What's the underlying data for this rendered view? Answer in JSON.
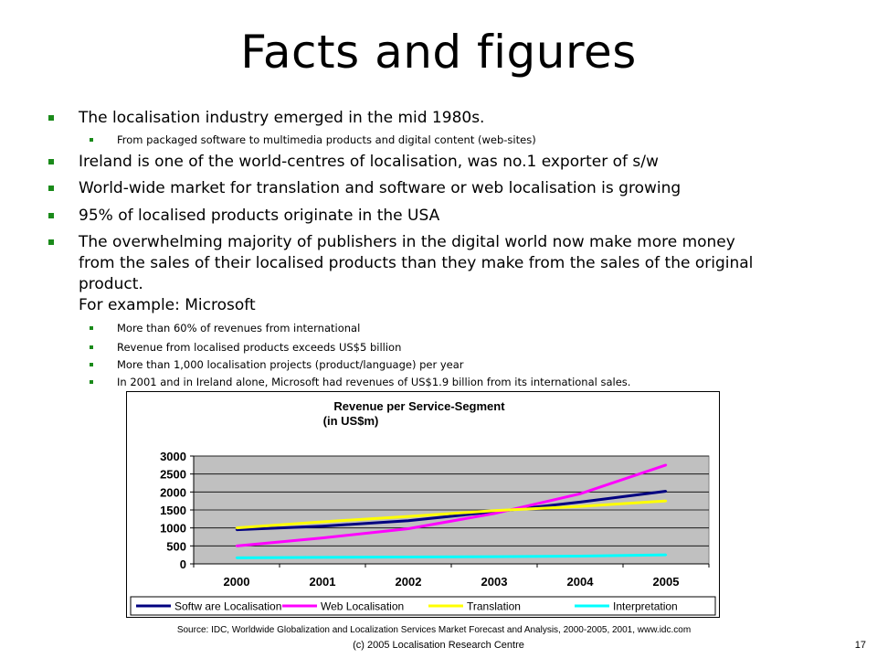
{
  "slide": {
    "title": "Facts and figures",
    "bullets": [
      {
        "text": "The localisation industry emerged in the mid 1980s."
      },
      {
        "text": "From packaged software to multimedia products and digital content (web-sites)"
      },
      {
        "text": "Ireland is one of the world-centres of localisation, was no.1 exporter of s/w"
      },
      {
        "text": "World-wide market for translation and software or web localisation is growing"
      },
      {
        "text": "95% of localised products originate in the USA"
      },
      {
        "line1": "The overwhelming majority of publishers in the digital world now make more money",
        "line2": "from the sales of their localised products than they make from the sales of the original",
        "line3": "product.",
        "line4": "For example: Microsoft"
      },
      {
        "text": "More than 60% of revenues from international"
      },
      {
        "text": "Revenue from localised products exceeds US$5 billion"
      },
      {
        "text": "More than 1,000 localisation projects (product/language) per year"
      },
      {
        "text": "In 2001 and in Ireland alone, Microsoft had revenues of US$1.9 billion from its international sales."
      }
    ],
    "source": "Source: IDC, Worldwide Globalization and Localization Services Market Forecast and Analysis, 2000-2005, 2001, www.idc.com",
    "footer": "(c) 2005 Localisation Research Centre",
    "page_number": "17"
  },
  "chart_data": {
    "type": "line",
    "title_line1": "Revenue per Service-Segment",
    "title_line2": "(in US$m)",
    "categories": [
      "2000",
      "2001",
      "2002",
      "2003",
      "2004",
      "2005"
    ],
    "ylim": [
      0,
      3000
    ],
    "yticks": [
      "0",
      "500",
      "1000",
      "1500",
      "2000",
      "2500",
      "3000"
    ],
    "grid": true,
    "legend_position": "bottom",
    "plot_background": "#c0c0c0",
    "series": [
      {
        "name": "Softw are Localisation",
        "color": "#000080",
        "values": [
          950,
          1050,
          1200,
          1450,
          1720,
          2020
        ]
      },
      {
        "name": "Web Localisation",
        "color": "#ff00ff",
        "values": [
          500,
          720,
          980,
          1400,
          1950,
          2750
        ]
      },
      {
        "name": "Translation",
        "color": "#ffff00",
        "values": [
          1000,
          1170,
          1320,
          1480,
          1600,
          1750
        ]
      },
      {
        "name": "Interpretation",
        "color": "#00ffff",
        "values": [
          170,
          180,
          190,
          200,
          215,
          250
        ]
      }
    ]
  }
}
